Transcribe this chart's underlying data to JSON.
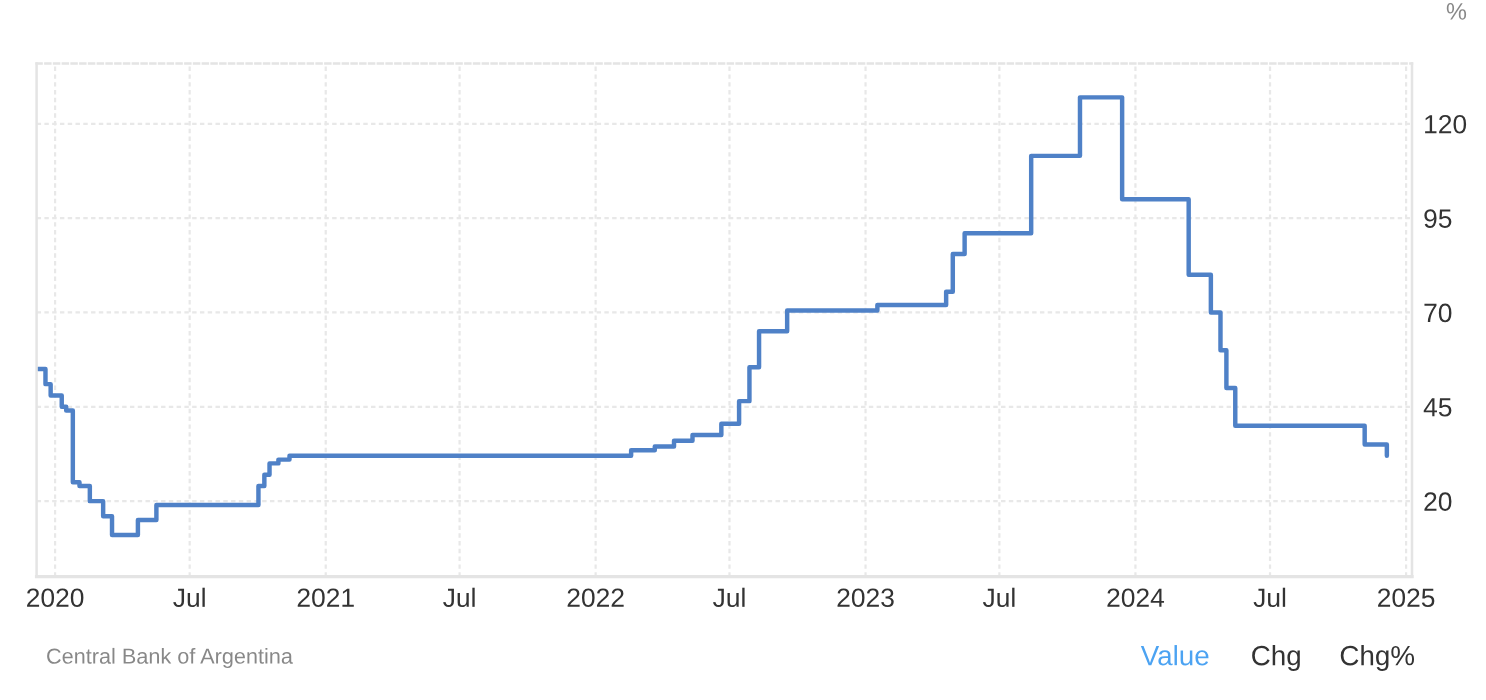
{
  "chart_data": {
    "type": "step",
    "ylabel": "%",
    "annotations": [
      "Central Bank of Argentina",
      "Value",
      "Chg",
      "Chg%"
    ],
    "x": [
      "2019-12-09",
      "2019-12-19",
      "2019-12-26",
      "2020-01-10",
      "2020-01-16",
      "2020-01-25",
      "2020-02-03",
      "2020-02-17",
      "2020-03-06",
      "2020-03-18",
      "2020-04-22",
      "2020-05-17",
      "2020-10-02",
      "2020-10-10",
      "2020-10-17",
      "2020-10-29",
      "2020-11-13",
      "2022-02-18",
      "2022-03-22",
      "2022-04-17",
      "2022-05-12",
      "2022-06-20",
      "2022-07-14",
      "2022-07-28",
      "2022-08-10",
      "2022-09-17",
      "2023-01-17",
      "2023-04-20",
      "2023-04-29",
      "2023-05-15",
      "2023-08-13",
      "2023-10-18",
      "2023-12-14",
      "2024-03-13",
      "2024-04-12",
      "2024-04-25",
      "2024-05-03",
      "2024-05-15",
      "2024-11-06",
      "2024-12-06"
    ],
    "series": [
      {
        "color": "#4f81c7",
        "values": [
          55,
          51,
          48,
          45,
          44,
          25,
          24,
          20,
          16,
          11,
          15,
          19,
          24,
          27,
          30,
          31,
          32,
          33.5,
          34.5,
          36,
          37.5,
          40.5,
          46.5,
          55.5,
          65,
          70.5,
          72,
          75.5,
          85.5,
          91,
          111.5,
          127,
          100,
          80,
          70,
          60,
          50,
          40,
          35,
          32
        ]
      }
    ],
    "xlim": [
      "2019-12-07",
      "2025-01-09"
    ],
    "ylim": [
      0,
      136
    ],
    "yticks": [
      20,
      45,
      70,
      95,
      120
    ],
    "xticks": [
      {
        "value": "2020-01-01",
        "label": "2020"
      },
      {
        "value": "2020-07-01",
        "label": "Jul"
      },
      {
        "value": "2021-01-01",
        "label": "2021"
      },
      {
        "value": "2021-07-01",
        "label": "Jul"
      },
      {
        "value": "2022-01-01",
        "label": "2022"
      },
      {
        "value": "2022-07-01",
        "label": "Jul"
      },
      {
        "value": "2023-01-01",
        "label": "2023"
      },
      {
        "value": "2023-07-01",
        "label": "Jul"
      },
      {
        "value": "2024-01-01",
        "label": "2024"
      },
      {
        "value": "2024-07-01",
        "label": "Jul"
      },
      {
        "value": "2025-01-01",
        "label": "2025"
      }
    ],
    "grid": true
  }
}
